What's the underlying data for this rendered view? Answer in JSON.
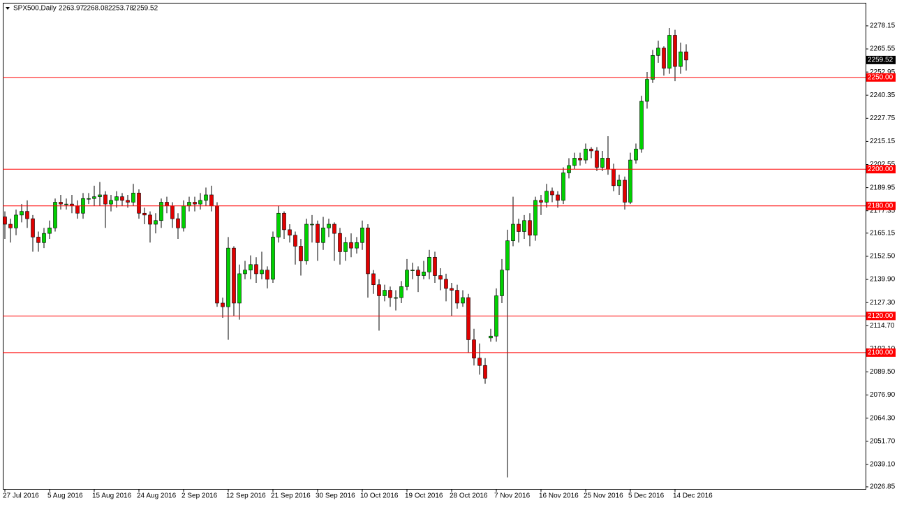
{
  "chart_data": {
    "type": "candlestick",
    "title": "SPX500,Daily",
    "categories": [
      "27 Jul 2016",
      null,
      null,
      null,
      null,
      null,
      null,
      null,
      "5 Aug 2016",
      null,
      null,
      null,
      null,
      null,
      null,
      null,
      "15 Aug 2016",
      null,
      null,
      null,
      null,
      null,
      null,
      null,
      "24 Aug 2016",
      null,
      null,
      null,
      null,
      null,
      null,
      null,
      "2 Sep 2016",
      null,
      null,
      null,
      null,
      null,
      null,
      null,
      "12 Sep 2016",
      null,
      null,
      null,
      null,
      null,
      null,
      null,
      "21 Sep 2016",
      null,
      null,
      null,
      null,
      null,
      null,
      null,
      "30 Sep 2016",
      null,
      null,
      null,
      null,
      null,
      null,
      null,
      "10 Oct 2016",
      null,
      null,
      null,
      null,
      null,
      null,
      null,
      "19 Oct 2016",
      null,
      null,
      null,
      null,
      null,
      null,
      null,
      "28 Oct 2016",
      null,
      null,
      null,
      null,
      null,
      null,
      null,
      "7 Nov 2016",
      null,
      null,
      null,
      null,
      null,
      null,
      null,
      "16 Nov 2016",
      null,
      null,
      null,
      null,
      null,
      null,
      null,
      "25 Nov 2016",
      null,
      null,
      null,
      null,
      null,
      null,
      null,
      "5 Dec 2016",
      null,
      null,
      null,
      null,
      null,
      null,
      null,
      "14 Dec 2016",
      null,
      null
    ],
    "open": [
      2174,
      2170,
      2168,
      2175,
      2177,
      2173,
      2163,
      2160,
      2165,
      2168,
      2182,
      2181,
      2181,
      2180,
      2176,
      2184,
      2184,
      2185,
      2186,
      2181,
      2183,
      2185,
      2183,
      2182,
      2187,
      2176,
      2175,
      2170,
      2172,
      2182,
      2180,
      2173,
      2168,
      2180,
      2182,
      2181,
      2183,
      2186,
      2180,
      2127,
      2125,
      2157,
      2127,
      2143,
      2145,
      2148,
      2143,
      2145,
      2140,
      2163,
      2176,
      2167,
      2164,
      2158,
      2150,
      2170,
      2170,
      2160,
      2168,
      2170,
      2165,
      2155,
      2160,
      2157,
      2160,
      2168,
      2143,
      2137,
      2131,
      2134,
      2130,
      2130,
      2136,
      2145,
      2145,
      2142,
      2144,
      2152,
      2142,
      2140,
      2135,
      2134,
      2127,
      2130,
      2107,
      2097,
      2093,
      2108,
      2109,
      2131,
      2145,
      2161,
      2170,
      2166,
      2172,
      2164,
      2183,
      2182,
      2188,
      2186,
      2183,
      2198,
      2202,
      2206,
      2205,
      2211,
      2210,
      2201,
      2206,
      2200,
      2191,
      2194,
      2182,
      2205,
      2211,
      2237,
      2249,
      2262,
      2266,
      2255,
      2273,
      2256,
      2263.97
    ],
    "high": [
      2177,
      2173,
      2178,
      2181,
      2183,
      2175,
      2166,
      2168,
      2172,
      2184,
      2186,
      2184,
      2186,
      2183,
      2187,
      2187,
      2191,
      2193,
      2188,
      2186,
      2188,
      2187,
      2186,
      2192,
      2189,
      2179,
      2177,
      2176,
      2184,
      2185,
      2182,
      2176,
      2183,
      2185,
      2185,
      2187,
      2190,
      2191,
      2182,
      2130,
      2163,
      2158,
      2148,
      2150,
      2153,
      2152,
      2155,
      2147,
      2166,
      2180,
      2177,
      2170,
      2166,
      2162,
      2173,
      2175,
      2172,
      2174,
      2173,
      2171,
      2168,
      2163,
      2165,
      2163,
      2172,
      2170,
      2145,
      2140,
      2137,
      2136,
      2134,
      2139,
      2151,
      2149,
      2147,
      2150,
      2156,
      2155,
      2146,
      2143,
      2138,
      2137,
      2134,
      2132,
      2113,
      2105,
      2097,
      2113,
      2135,
      2151,
      2167,
      2185,
      2173,
      2175,
      2176,
      2185,
      2186,
      2192,
      2190,
      2188,
      2201,
      2206,
      2209,
      2209,
      2214,
      2212,
      2212,
      2210,
      2218,
      2203,
      2197,
      2196,
      2209,
      2214,
      2240,
      2253,
      2265,
      2270,
      2267,
      2277,
      2276,
      2269,
      2268.08
    ],
    "low": [
      2162,
      2160,
      2164,
      2171,
      2168,
      2155,
      2155,
      2157,
      2162,
      2166,
      2178,
      2178,
      2176,
      2173,
      2173,
      2181,
      2180,
      2180,
      2168,
      2177,
      2179,
      2180,
      2179,
      2180,
      2173,
      2170,
      2160,
      2165,
      2168,
      2176,
      2168,
      2162,
      2166,
      2177,
      2177,
      2178,
      2180,
      2177,
      2125,
      2119,
      2107,
      2120,
      2118,
      2140,
      2140,
      2138,
      2140,
      2135,
      2138,
      2160,
      2162,
      2160,
      2148,
      2142,
      2148,
      2160,
      2150,
      2156,
      2163,
      2150,
      2148,
      2150,
      2152,
      2154,
      2156,
      2130,
      2132,
      2112,
      2128,
      2125,
      2123,
      2127,
      2134,
      2140,
      2133,
      2140,
      2140,
      2138,
      2134,
      2128,
      2120,
      2124,
      2125,
      2100,
      2093,
      2088,
      2083,
      2106,
      2106,
      2127,
      2032,
      2158,
      2160,
      2162,
      2158,
      2161,
      2175,
      2179,
      2182,
      2179,
      2181,
      2195,
      2200,
      2202,
      2203,
      2206,
      2199,
      2199,
      2197,
      2188,
      2186,
      2178,
      2181,
      2203,
      2209,
      2233,
      2247,
      2258,
      2251,
      2252,
      2248,
      2252,
      2253.78
    ],
    "close": [
      2170,
      2168,
      2175,
      2177,
      2173,
      2163,
      2160,
      2165,
      2168,
      2182,
      2181,
      2181,
      2180,
      2176,
      2184,
      2184,
      2185,
      2186,
      2181,
      2183,
      2185,
      2183,
      2182,
      2187,
      2176,
      2175,
      2170,
      2172,
      2182,
      2180,
      2173,
      2168,
      2180,
      2182,
      2181,
      2183,
      2186,
      2180,
      2127,
      2125,
      2157,
      2127,
      2143,
      2145,
      2148,
      2143,
      2145,
      2140,
      2163,
      2176,
      2167,
      2164,
      2158,
      2150,
      2170,
      2170,
      2160,
      2168,
      2170,
      2165,
      2155,
      2160,
      2157,
      2160,
      2168,
      2143,
      2137,
      2131,
      2134,
      2130,
      2130,
      2136,
      2145,
      2145,
      2142,
      2144,
      2152,
      2142,
      2140,
      2135,
      2134,
      2127,
      2130,
      2107,
      2097,
      2093,
      2086,
      2109,
      2131,
      2145,
      2161,
      2170,
      2166,
      2172,
      2164,
      2183,
      2182,
      2188,
      2186,
      2183,
      2198,
      2202,
      2206,
      2205,
      2211,
      2210,
      2201,
      2206,
      2200,
      2191,
      2194,
      2182,
      2205,
      2211,
      2237,
      2249,
      2262,
      2266,
      2255,
      2273,
      2256,
      2263.97,
      2259.52
    ],
    "up_color": "#00d000",
    "down_color": "#e00000",
    "ylim": [
      2025.7,
      2290.7
    ],
    "yticks": [
      2278.15,
      2265.55,
      {
        "value": 2252.95,
        "label": "2252.95"
      },
      2240.35,
      2227.75,
      2215.15,
      2202.55,
      2189.95,
      2177.35,
      2165.15,
      {
        "value": 2152.5,
        "label": "2152.50"
      },
      {
        "value": 2139.9,
        "label": "2139.90"
      },
      {
        "value": 2127.3,
        "label": "2127.30"
      },
      {
        "value": 2114.7,
        "label": "2114.70"
      },
      {
        "value": 2102.1,
        "label": "2102.10"
      },
      {
        "value": 2089.5,
        "label": "2089.50"
      },
      {
        "value": 2076.9,
        "label": "2076.90"
      },
      {
        "value": 2064.3,
        "label": "2064.30"
      },
      {
        "value": 2051.7,
        "label": "2051.70"
      },
      {
        "value": 2039.1,
        "label": "2039.10"
      },
      2026.85
    ],
    "levels": [
      {
        "value": 2250,
        "label": "2250.00"
      },
      {
        "value": 2200,
        "label": "2200.00"
      },
      {
        "value": 2180,
        "label": "2180.00"
      },
      {
        "value": 2120,
        "label": "2120.00"
      },
      {
        "value": 2100,
        "label": "2100.00"
      }
    ],
    "level_color": "#ff0000"
  }
}
